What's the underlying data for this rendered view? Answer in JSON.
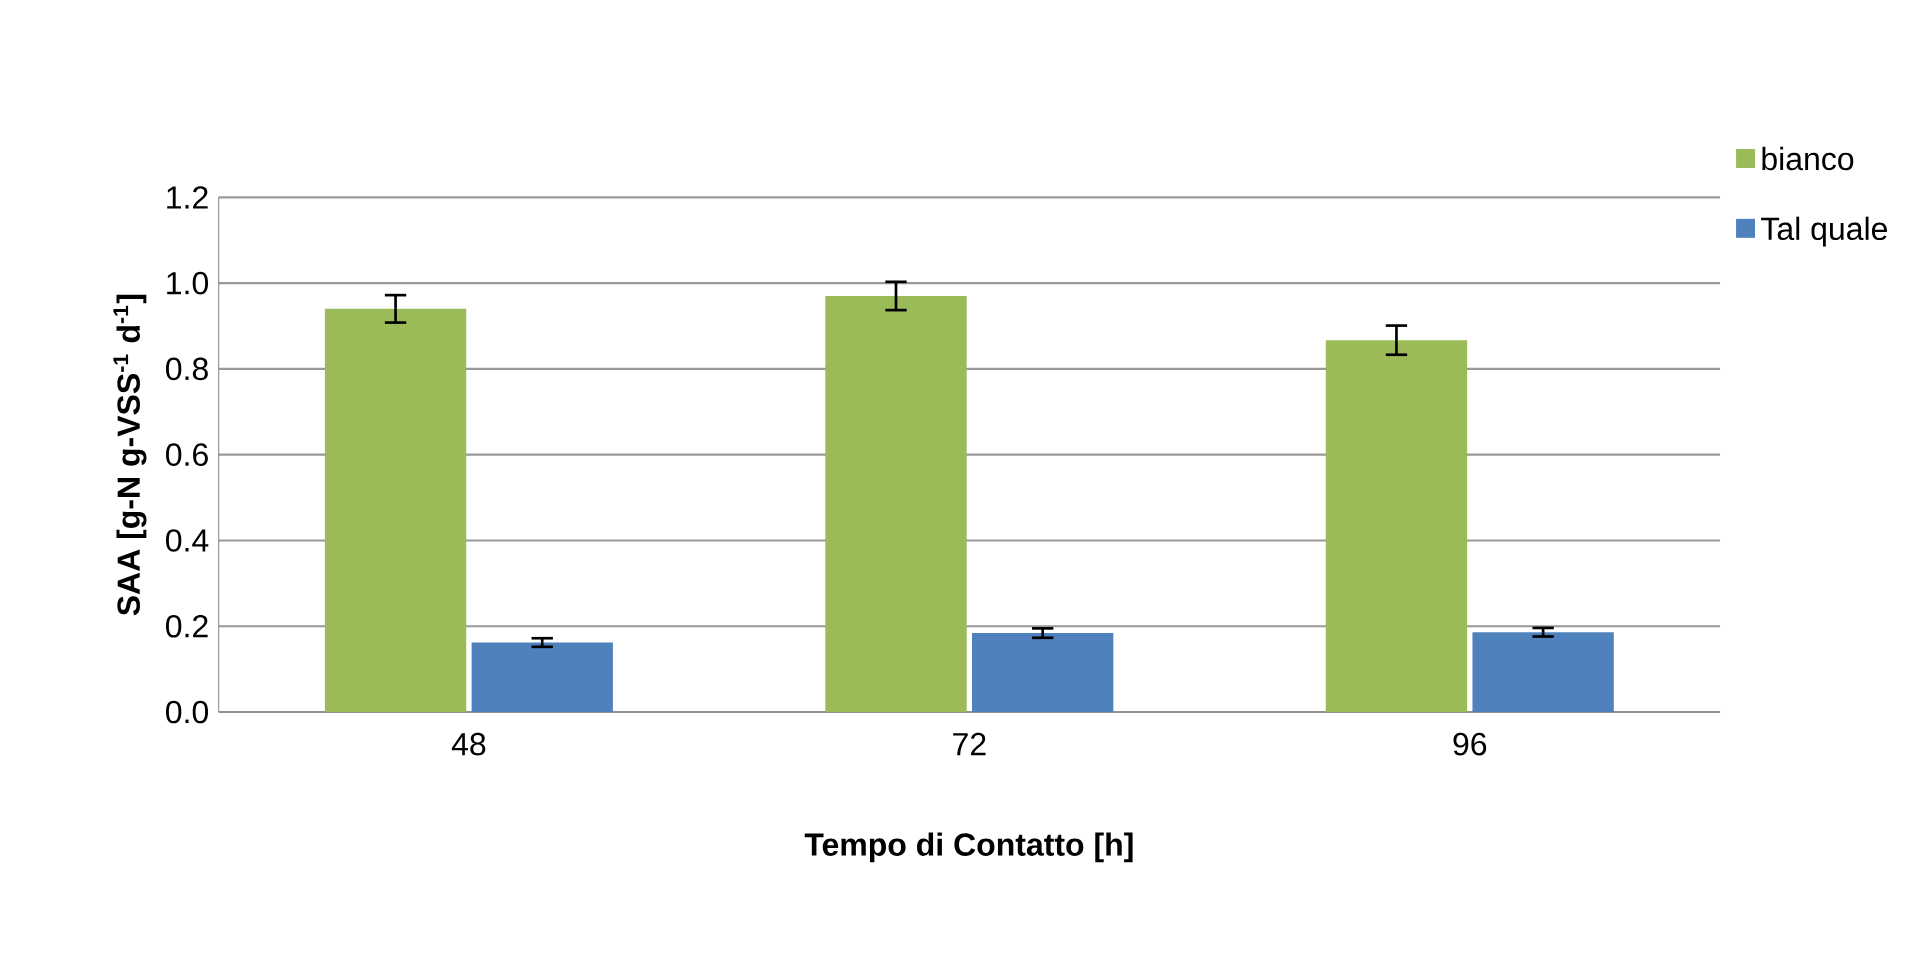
{
  "chart_data": {
    "type": "bar",
    "xlabel": "Tempo di Contatto [h]",
    "ylabel": "SAA [g-N g-VSS$^{-1}$ d$^{-1}$]",
    "categories": [
      "48",
      "72",
      "96"
    ],
    "series": [
      {
        "name": "bianco",
        "color": "#9bbb59",
        "values": [
          0.94,
          0.97,
          0.867
        ],
        "errors": [
          0.032,
          0.033,
          0.034
        ]
      },
      {
        "name": "Tal quale",
        "color": "#4f81bd",
        "values": [
          0.162,
          0.184,
          0.186
        ],
        "errors": [
          0.01,
          0.011,
          0.01
        ]
      }
    ],
    "ylim": [
      0,
      1.2
    ],
    "yticks": [
      {
        "value": 0,
        "label": "0.0"
      },
      0.2,
      0.4,
      0.6,
      0.8,
      {
        "value": 1,
        "label": "1.0"
      },
      1.2
    ],
    "grid": "y",
    "legend": "top right"
  }
}
